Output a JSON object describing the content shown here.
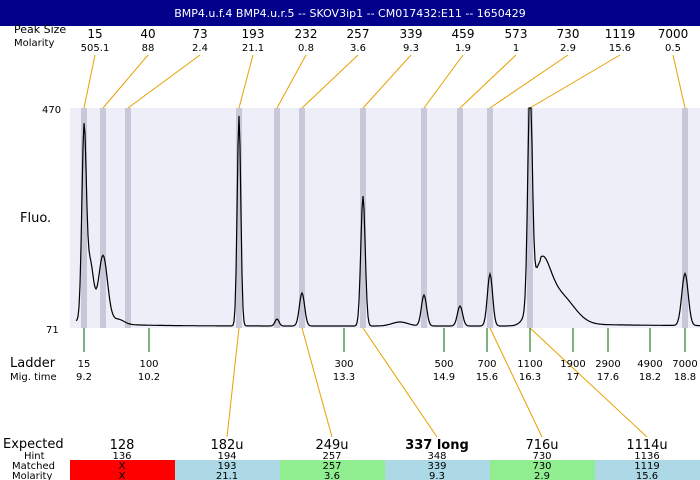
{
  "header": {
    "title": "BMP4.u.f.4  BMP4.u.r.5 -- SKOV3ip1 -- CM017432:E11 -- 1650429"
  },
  "labels": {
    "peak_size": "Peak Size",
    "molarity": "Molarity",
    "fluo": "Fluo.",
    "ladder": "Ladder",
    "mig_time": "Mig. time",
    "expected": "Expected",
    "hint": "Hint",
    "matched": "Matched",
    "molarity_row": "Molarity"
  },
  "colors": {
    "header_bg": "#00008b",
    "plot_bg": "#eeeef8",
    "band": "#c8c8d8",
    "orange": "#e8a000",
    "green": "#006400",
    "red": "#ff0000",
    "lightgreen": "#90ee90",
    "lightblue": "#add8e6"
  },
  "chart_data": {
    "type": "line",
    "ylim": [
      71,
      470
    ],
    "yticks": [
      "470",
      "71"
    ],
    "peaks": [
      {
        "size": "15",
        "molarity": "505.1"
      },
      {
        "size": "40",
        "molarity": "88"
      },
      {
        "size": "73",
        "molarity": "2.4"
      },
      {
        "size": "193",
        "molarity": "21.1"
      },
      {
        "size": "232",
        "molarity": "0.8"
      },
      {
        "size": "257",
        "molarity": "3.6"
      },
      {
        "size": "339",
        "molarity": "9.3"
      },
      {
        "size": "459",
        "molarity": "1.9"
      },
      {
        "size": "573",
        "molarity": "1"
      },
      {
        "size": "730",
        "molarity": "2.9"
      },
      {
        "size": "1119",
        "molarity": "15.6"
      },
      {
        "size": "7000",
        "molarity": "0.5"
      }
    ],
    "ladder": [
      {
        "size": "15",
        "time": "9.2"
      },
      {
        "size": "100",
        "time": "10.2"
      },
      {
        "size": "300",
        "time": "13.3"
      },
      {
        "size": "500",
        "time": "14.9"
      },
      {
        "size": "700",
        "time": "15.6"
      },
      {
        "size": "1100",
        "time": "16.3"
      },
      {
        "size": "1900",
        "time": "17"
      },
      {
        "size": "2900",
        "time": "17.6"
      },
      {
        "size": "4900",
        "time": "18.2"
      },
      {
        "size": "7000",
        "time": "18.8"
      }
    ],
    "expected": [
      {
        "label": "128",
        "hint": "136",
        "matched": "X",
        "molarity": "X",
        "status": "miss",
        "bold": false
      },
      {
        "label": "182u",
        "hint": "194",
        "matched": "193",
        "molarity": "21.1",
        "status": "near",
        "bold": false
      },
      {
        "label": "249u",
        "hint": "257",
        "matched": "257",
        "molarity": "3.6",
        "status": "ok",
        "bold": false
      },
      {
        "label": "337 long",
        "hint": "348",
        "matched": "339",
        "molarity": "9.3",
        "status": "near",
        "bold": true
      },
      {
        "label": "716u",
        "hint": "730",
        "matched": "730",
        "molarity": "2.9",
        "status": "ok",
        "bold": false
      },
      {
        "label": "1114u",
        "hint": "1136",
        "matched": "1119",
        "molarity": "15.6",
        "status": "near",
        "bold": false
      }
    ]
  }
}
